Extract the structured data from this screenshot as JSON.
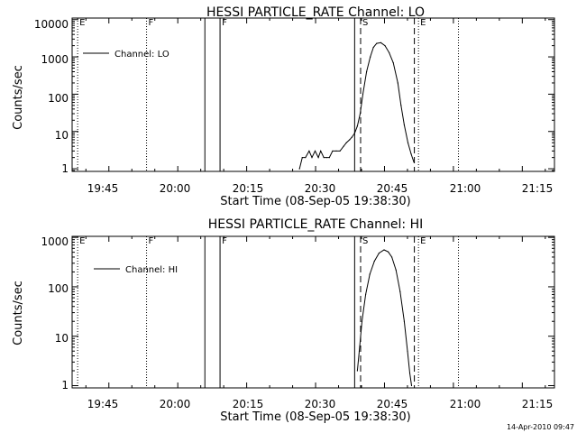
{
  "footer_timestamp": "14-Apr-2010 09:47",
  "colors": {
    "background": "#ffffff",
    "foreground": "#000000"
  },
  "chart_data": [
    {
      "type": "line",
      "title": "HESSI PARTICLE_RATE Channel: LO",
      "xlabel": "Start Time (08-Sep-05 19:38:30)",
      "ylabel": "Counts/sec",
      "x_unit": "minutes since 19:38:30 UT",
      "xlim": [
        -1.5,
        103.5
      ],
      "ylim": [
        0.85,
        11000
      ],
      "y_scale": "log",
      "x_ticks": [
        {
          "label": "19:45",
          "x": 6.5
        },
        {
          "label": "20:00",
          "x": 21.5
        },
        {
          "label": "20:15",
          "x": 36.5
        },
        {
          "label": "20:30",
          "x": 51.5
        },
        {
          "label": "20:45",
          "x": 66.5
        },
        {
          "label": "21:00",
          "x": 81.5
        },
        {
          "label": "21:15",
          "x": 96.5
        }
      ],
      "y_ticks": [
        {
          "label": "1",
          "y": 1
        },
        {
          "label": "10",
          "y": 10
        },
        {
          "label": "100",
          "y": 100
        },
        {
          "label": "1000",
          "y": 1000
        },
        {
          "label": "10000",
          "y": 10000
        }
      ],
      "legend": {
        "label": "Channel: LO",
        "position": "top-left"
      },
      "markers": [
        {
          "label": "E",
          "x": -0.3,
          "style": "dotted"
        },
        {
          "label": "F",
          "x": 14.7,
          "style": "dotted"
        },
        {
          "label": "",
          "x": 27.4,
          "style": "solid"
        },
        {
          "label": "F",
          "x": 30.7,
          "style": "solid"
        },
        {
          "label": "",
          "x": 60.0,
          "style": "solid"
        },
        {
          "label": "S",
          "x": 61.3,
          "style": "dashed"
        },
        {
          "label": "",
          "x": 73.0,
          "style": "dashed"
        },
        {
          "label": "E",
          "x": 73.9,
          "style": "dotted"
        },
        {
          "label": "",
          "x": 82.6,
          "style": "dotted"
        }
      ],
      "series": [
        {
          "x": [
            48.0,
            48.6,
            49.3,
            50.1,
            50.7,
            51.4,
            52.1,
            52.6,
            53.3,
            53.9,
            54.5,
            55.2,
            56.0,
            56.8,
            57.6,
            58.2,
            58.9,
            59.4,
            60.0,
            60.6,
            61.2,
            61.8,
            62.6,
            63.4,
            64.1,
            64.8,
            65.7,
            66.6,
            67.5,
            68.4,
            69.4,
            70.1,
            70.8,
            71.6,
            72.3,
            72.9
          ],
          "y": [
            1,
            2,
            2,
            3,
            2,
            3,
            2,
            3,
            2,
            2,
            2,
            3,
            3,
            3,
            4,
            5,
            6,
            7,
            9,
            14,
            30,
            100,
            400,
            1000,
            1800,
            2300,
            2400,
            2000,
            1300,
            700,
            200,
            50,
            15,
            5,
            2.5,
            1.5
          ]
        }
      ]
    },
    {
      "type": "line",
      "title": "HESSI PARTICLE_RATE Channel: HI",
      "xlabel": "Start Time (08-Sep-05 19:38:30)",
      "ylabel": "Counts/sec",
      "x_unit": "minutes since 19:38:30 UT",
      "xlim": [
        -1.5,
        103.5
      ],
      "ylim": [
        0.9,
        1050
      ],
      "y_scale": "log",
      "x_ticks": [
        {
          "label": "19:45",
          "x": 6.5
        },
        {
          "label": "20:00",
          "x": 21.5
        },
        {
          "label": "20:15",
          "x": 36.5
        },
        {
          "label": "20:30",
          "x": 51.5
        },
        {
          "label": "20:45",
          "x": 66.5
        },
        {
          "label": "21:00",
          "x": 81.5
        },
        {
          "label": "21:15",
          "x": 96.5
        }
      ],
      "y_ticks": [
        {
          "label": "1",
          "y": 1
        },
        {
          "label": "10",
          "y": 10
        },
        {
          "label": "100",
          "y": 100
        },
        {
          "label": "1000",
          "y": 1000
        }
      ],
      "legend": {
        "label": "Channel: HI",
        "position": "top-left"
      },
      "markers": [
        {
          "label": "E",
          "x": -0.3,
          "style": "dotted"
        },
        {
          "label": "F",
          "x": 14.7,
          "style": "dotted"
        },
        {
          "label": "",
          "x": 27.4,
          "style": "solid"
        },
        {
          "label": "F",
          "x": 30.7,
          "style": "solid"
        },
        {
          "label": "",
          "x": 60.0,
          "style": "solid"
        },
        {
          "label": "S",
          "x": 61.3,
          "style": "dashed"
        },
        {
          "label": "",
          "x": 73.0,
          "style": "dashed"
        },
        {
          "label": "E",
          "x": 73.9,
          "style": "dotted"
        },
        {
          "label": "",
          "x": 82.6,
          "style": "dotted"
        }
      ],
      "series": [
        {
          "x": [
            60.6,
            61.0,
            61.6,
            62.4,
            63.3,
            64.3,
            65.3,
            66.4,
            67.3,
            68.1,
            69.0,
            69.9,
            70.8,
            71.5,
            72.0,
            72.4
          ],
          "y": [
            2,
            5,
            20,
            70,
            180,
            330,
            480,
            560,
            510,
            400,
            220,
            80,
            20,
            5,
            1.8,
            1
          ]
        }
      ]
    }
  ]
}
